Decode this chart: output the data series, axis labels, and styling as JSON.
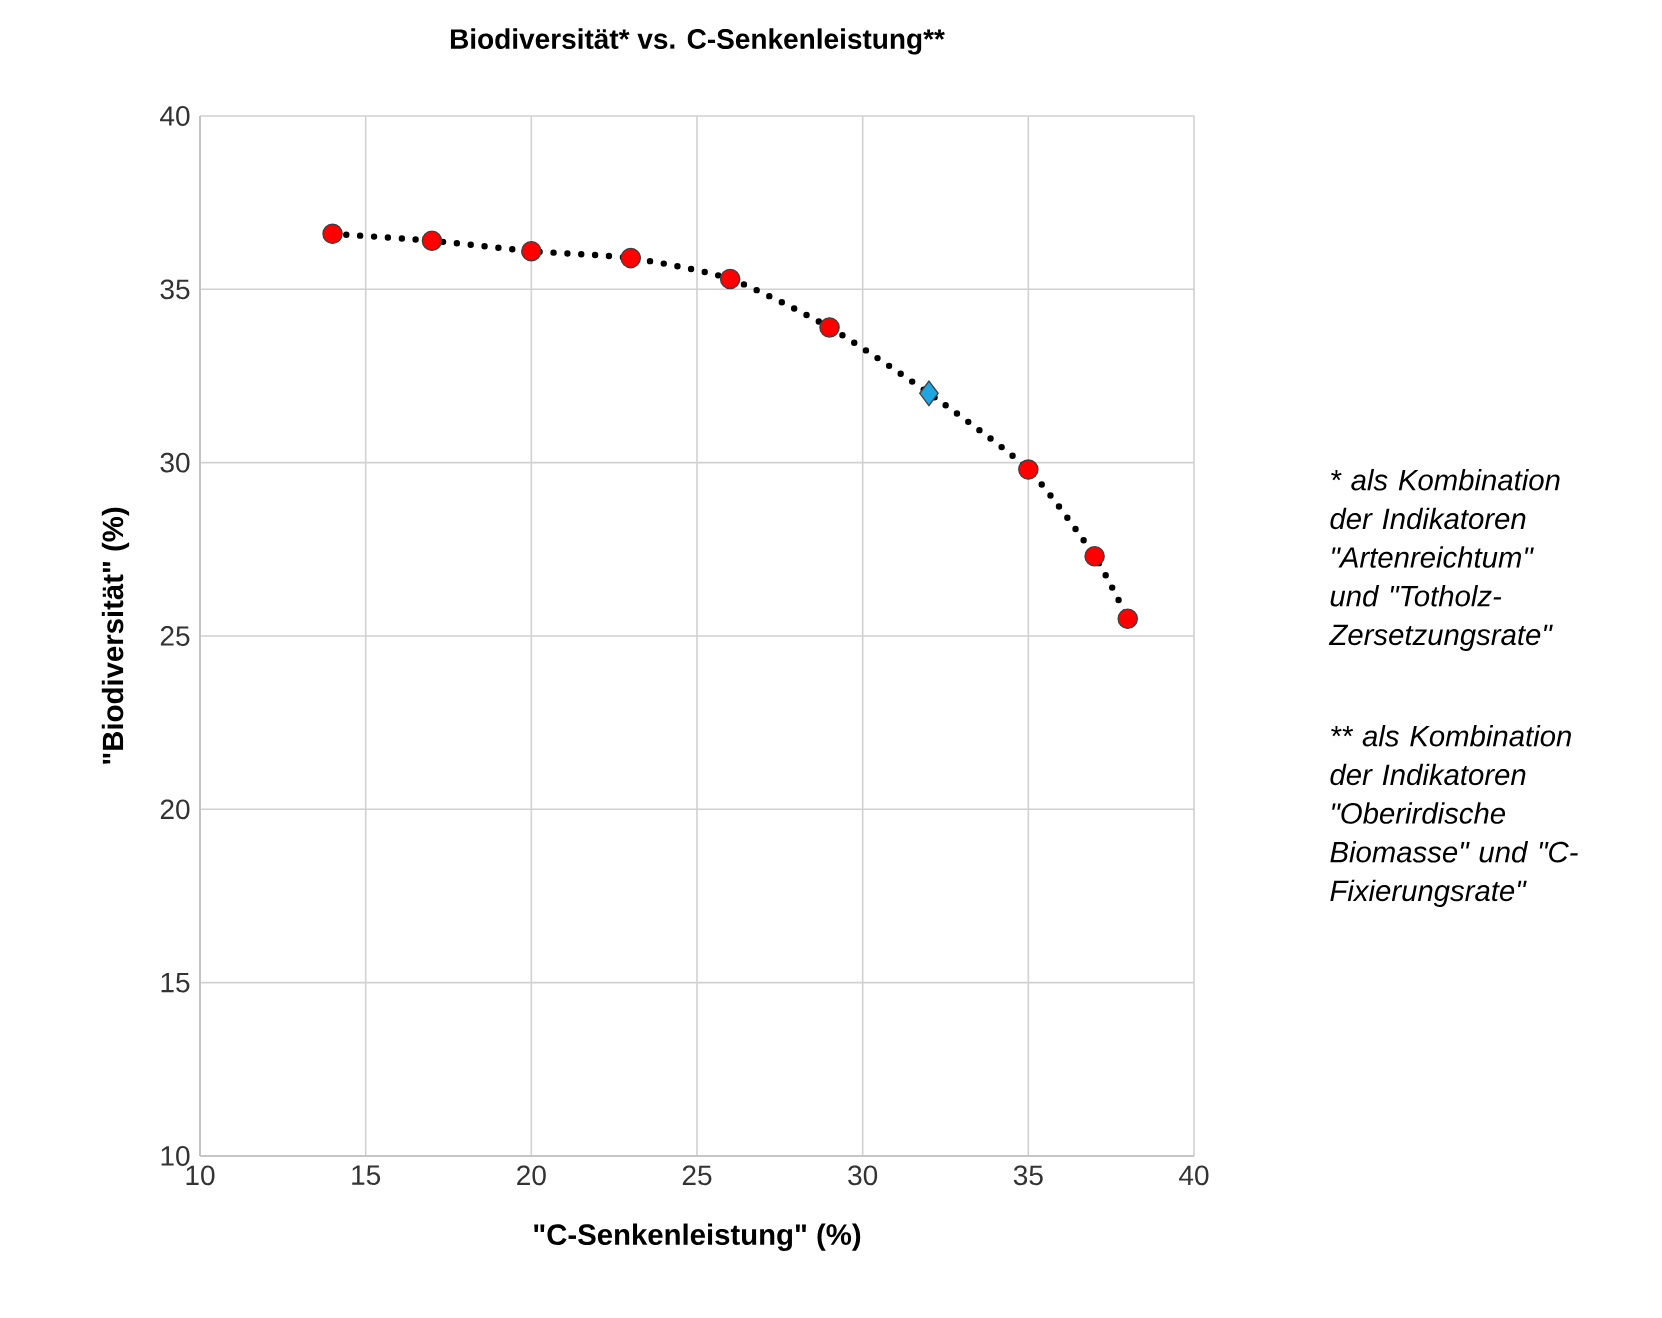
{
  "chart_data": {
    "type": "scatter",
    "title": "Biodiversität* vs. C-Senkenleistung**",
    "xlabel": "\"C-Senkenleistung\" (%)",
    "ylabel": "\"Biodiversität\" (%)",
    "xlim": [
      10,
      40
    ],
    "xticks": [
      10,
      15,
      20,
      25,
      30,
      35,
      40
    ],
    "ylim": [
      10,
      40
    ],
    "yticks": [
      10,
      15,
      20,
      25,
      30,
      35,
      40
    ],
    "grid": true,
    "series": [
      {
        "type": "line",
        "line_style": "dotted",
        "marker": "none",
        "color": "#000000",
        "x": [
          14,
          17,
          20,
          23,
          26,
          29,
          32,
          35,
          37,
          38
        ],
        "values": [
          36.6,
          36.4,
          36.1,
          35.9,
          35.3,
          33.9,
          32.0,
          29.8,
          27.3,
          25.5
        ]
      },
      {
        "marker": "circle",
        "color": "#ff0000",
        "x": [
          14,
          17,
          20,
          23,
          26,
          29,
          35,
          37,
          38
        ],
        "values": [
          36.6,
          36.4,
          36.1,
          35.9,
          35.3,
          33.9,
          29.8,
          27.3,
          25.5
        ]
      },
      {
        "marker": "diamond",
        "color": "#1fa5e0",
        "x": [
          32
        ],
        "values": [
          32.0
        ]
      }
    ],
    "annotations": [
      "* als Kombination der Indikatoren \"Artenreichtum\" und \"Totholz-Zersetzungsrate\"",
      "** als Kombination der Indikatoren \"Oberirdische Biomasse\" und \"C-Fixierungsrate\""
    ]
  }
}
